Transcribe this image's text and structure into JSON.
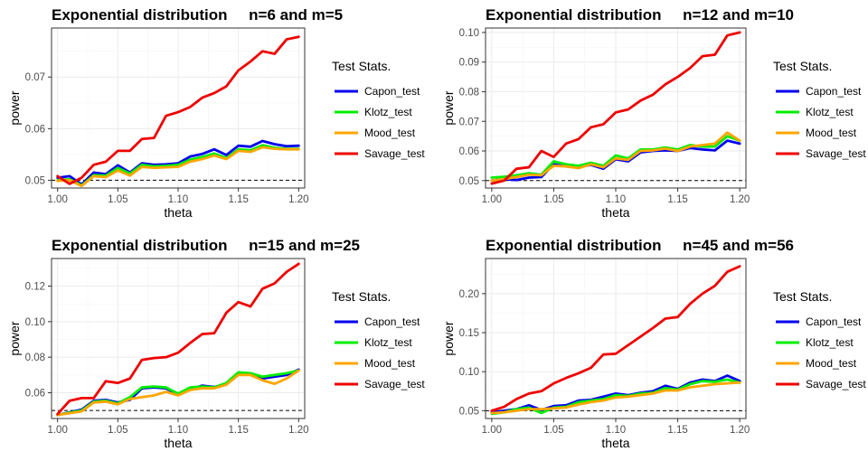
{
  "colors": {
    "Capon_test": "#0000ee",
    "Klotz_test": "#00ee00",
    "Mood_test": "#ffa500",
    "Savage_test": "#ee0000"
  },
  "chart_data": [
    {
      "type": "line",
      "title": "Exponential distribution     n=6 and m=5",
      "xlabel": "theta",
      "ylabel": "power",
      "xlim": [
        0.995,
        1.205
      ],
      "ylim": [
        0.0485,
        0.0795
      ],
      "xticks": [
        1.0,
        1.05,
        1.1,
        1.15,
        1.2
      ],
      "xtick_labels": [
        "1.00",
        "1.05",
        "1.10",
        "1.15",
        "1.20"
      ],
      "yticks": [
        0.05,
        0.06,
        0.07
      ],
      "ytick_labels": [
        "0.05",
        "0.06",
        "0.07"
      ],
      "reference_line": 0.05,
      "legend_title": "Test Stats.",
      "legend_position": "right",
      "grid": true,
      "x": [
        1.0,
        1.01,
        1.02,
        1.03,
        1.04,
        1.05,
        1.06,
        1.07,
        1.08,
        1.09,
        1.1,
        1.11,
        1.12,
        1.13,
        1.14,
        1.15,
        1.16,
        1.17,
        1.18,
        1.19,
        1.2
      ],
      "series": [
        {
          "name": "Capon_test",
          "values": [
            0.0505,
            0.0508,
            0.0492,
            0.0515,
            0.0512,
            0.0529,
            0.0515,
            0.0533,
            0.053,
            0.0531,
            0.0533,
            0.0546,
            0.0551,
            0.056,
            0.0549,
            0.0567,
            0.0565,
            0.0576,
            0.057,
            0.0566,
            0.0567
          ]
        },
        {
          "name": "Klotz_test",
          "values": [
            0.05,
            0.0502,
            0.049,
            0.051,
            0.0509,
            0.0524,
            0.0513,
            0.053,
            0.0527,
            0.0528,
            0.053,
            0.054,
            0.0545,
            0.0552,
            0.0543,
            0.056,
            0.0558,
            0.0568,
            0.0563,
            0.0561,
            0.0561
          ]
        },
        {
          "name": "Mood_test",
          "values": [
            0.0499,
            0.05,
            0.0489,
            0.0508,
            0.0506,
            0.0519,
            0.0509,
            0.0526,
            0.0524,
            0.0525,
            0.0526,
            0.0536,
            0.0541,
            0.0548,
            0.0541,
            0.0557,
            0.0555,
            0.0564,
            0.0561,
            0.056,
            0.056
          ]
        },
        {
          "name": "Savage_test",
          "values": [
            0.0508,
            0.0493,
            0.0505,
            0.053,
            0.0536,
            0.0557,
            0.0557,
            0.058,
            0.0582,
            0.0625,
            0.0632,
            0.0642,
            0.066,
            0.0669,
            0.0682,
            0.0713,
            0.073,
            0.075,
            0.0745,
            0.0773,
            0.0778
          ]
        }
      ]
    },
    {
      "type": "line",
      "title": "Exponential distribution     n=12 and m=10",
      "xlabel": "theta",
      "ylabel": "power",
      "xlim": [
        0.995,
        1.205
      ],
      "ylim": [
        0.0475,
        0.1015
      ],
      "xticks": [
        1.0,
        1.05,
        1.1,
        1.15,
        1.2
      ],
      "xtick_labels": [
        "1.00",
        "1.05",
        "1.10",
        "1.15",
        "1.20"
      ],
      "yticks": [
        0.05,
        0.06,
        0.07,
        0.08,
        0.09,
        0.1
      ],
      "ytick_labels": [
        "0.05",
        "0.06",
        "0.07",
        "0.08",
        "0.09",
        "0.10"
      ],
      "reference_line": 0.05,
      "legend_title": "Test Stats.",
      "legend_position": "right",
      "grid": true,
      "x": [
        1.0,
        1.01,
        1.02,
        1.03,
        1.04,
        1.05,
        1.06,
        1.07,
        1.08,
        1.09,
        1.1,
        1.11,
        1.12,
        1.13,
        1.14,
        1.15,
        1.16,
        1.17,
        1.18,
        1.19,
        1.2
      ],
      "series": [
        {
          "name": "Capon_test",
          "values": [
            0.05,
            0.0505,
            0.0502,
            0.051,
            0.0512,
            0.0555,
            0.0548,
            0.0545,
            0.0553,
            0.054,
            0.0572,
            0.0565,
            0.0595,
            0.06,
            0.0602,
            0.06,
            0.061,
            0.0605,
            0.0602,
            0.0635,
            0.0625
          ]
        },
        {
          "name": "Klotz_test",
          "values": [
            0.051,
            0.0513,
            0.0518,
            0.0525,
            0.052,
            0.0565,
            0.0555,
            0.055,
            0.056,
            0.055,
            0.0585,
            0.0575,
            0.0605,
            0.0605,
            0.0612,
            0.0605,
            0.062,
            0.0615,
            0.0615,
            0.065,
            0.0635
          ]
        },
        {
          "name": "Mood_test",
          "values": [
            0.05,
            0.0505,
            0.0512,
            0.052,
            0.0518,
            0.055,
            0.0548,
            0.0542,
            0.0555,
            0.0545,
            0.0575,
            0.057,
            0.06,
            0.0602,
            0.0608,
            0.06,
            0.0615,
            0.062,
            0.0625,
            0.0662,
            0.0635
          ]
        },
        {
          "name": "Savage_test",
          "values": [
            0.049,
            0.05,
            0.054,
            0.0545,
            0.06,
            0.058,
            0.0625,
            0.064,
            0.068,
            0.069,
            0.073,
            0.074,
            0.077,
            0.079,
            0.0825,
            0.085,
            0.088,
            0.092,
            0.0925,
            0.099,
            0.1
          ]
        }
      ]
    },
    {
      "type": "line",
      "title": "Exponential distribution     n=15 and m=25",
      "xlabel": "theta",
      "ylabel": "power",
      "xlim": [
        0.995,
        1.205
      ],
      "ylim": [
        0.0455,
        0.1355
      ],
      "xticks": [
        1.0,
        1.05,
        1.1,
        1.15,
        1.2
      ],
      "xtick_labels": [
        "1.00",
        "1.05",
        "1.10",
        "1.15",
        "1.20"
      ],
      "yticks": [
        0.06,
        0.08,
        0.1,
        0.12
      ],
      "ytick_labels": [
        "0.06",
        "0.08",
        "0.10",
        "0.12"
      ],
      "reference_line": 0.05,
      "legend_title": "Test Stats.",
      "legend_position": "right",
      "grid": true,
      "x": [
        1.0,
        1.01,
        1.02,
        1.03,
        1.04,
        1.05,
        1.06,
        1.07,
        1.08,
        1.09,
        1.1,
        1.11,
        1.12,
        1.13,
        1.14,
        1.15,
        1.16,
        1.17,
        1.18,
        1.19,
        1.2
      ],
      "series": [
        {
          "name": "Capon_test",
          "values": [
            0.0475,
            0.049,
            0.0505,
            0.0555,
            0.056,
            0.0545,
            0.056,
            0.0625,
            0.063,
            0.0625,
            0.059,
            0.062,
            0.064,
            0.0632,
            0.065,
            0.071,
            0.0705,
            0.068,
            0.069,
            0.07,
            0.073
          ]
        },
        {
          "name": "Klotz_test",
          "values": [
            0.0475,
            0.0488,
            0.05,
            0.055,
            0.0555,
            0.054,
            0.0575,
            0.063,
            0.0635,
            0.063,
            0.0595,
            0.063,
            0.0635,
            0.063,
            0.0655,
            0.0715,
            0.071,
            0.069,
            0.07,
            0.071,
            0.0725
          ]
        },
        {
          "name": "Mood_test",
          "values": [
            0.0475,
            0.0485,
            0.0495,
            0.0545,
            0.055,
            0.0535,
            0.0565,
            0.0575,
            0.0585,
            0.0605,
            0.0585,
            0.0615,
            0.0625,
            0.0625,
            0.0645,
            0.07,
            0.07,
            0.067,
            0.065,
            0.068,
            0.0725
          ]
        },
        {
          "name": "Savage_test",
          "values": [
            0.048,
            0.0555,
            0.057,
            0.057,
            0.0665,
            0.0655,
            0.068,
            0.0785,
            0.0795,
            0.08,
            0.0825,
            0.088,
            0.093,
            0.0935,
            0.105,
            0.111,
            0.1085,
            0.1185,
            0.1215,
            0.128,
            0.1325
          ]
        }
      ]
    },
    {
      "type": "line",
      "title": "Exponential distribution     n=45 and m=56",
      "xlabel": "theta",
      "ylabel": "power",
      "xlim": [
        0.995,
        1.205
      ],
      "ylim": [
        0.04,
        0.245
      ],
      "xticks": [
        1.0,
        1.05,
        1.1,
        1.15,
        1.2
      ],
      "xtick_labels": [
        "1.00",
        "1.05",
        "1.10",
        "1.15",
        "1.20"
      ],
      "yticks": [
        0.05,
        0.1,
        0.15,
        0.2
      ],
      "ytick_labels": [
        "0.05",
        "0.10",
        "0.15",
        "0.20"
      ],
      "reference_line": 0.05,
      "legend_title": "Test Stats.",
      "legend_position": "right",
      "grid": true,
      "x": [
        1.0,
        1.01,
        1.02,
        1.03,
        1.04,
        1.05,
        1.06,
        1.07,
        1.08,
        1.09,
        1.1,
        1.11,
        1.12,
        1.13,
        1.14,
        1.15,
        1.16,
        1.17,
        1.18,
        1.19,
        1.2
      ],
      "series": [
        {
          "name": "Capon_test",
          "values": [
            0.048,
            0.05,
            0.052,
            0.057,
            0.051,
            0.056,
            0.057,
            0.063,
            0.064,
            0.068,
            0.072,
            0.07,
            0.073,
            0.075,
            0.082,
            0.078,
            0.086,
            0.09,
            0.088,
            0.095,
            0.088
          ]
        },
        {
          "name": "Klotz_test",
          "values": [
            0.046,
            0.048,
            0.052,
            0.054,
            0.047,
            0.054,
            0.055,
            0.061,
            0.063,
            0.065,
            0.07,
            0.069,
            0.072,
            0.073,
            0.079,
            0.077,
            0.084,
            0.088,
            0.087,
            0.09,
            0.086
          ]
        },
        {
          "name": "Mood_test",
          "values": [
            0.047,
            0.048,
            0.05,
            0.052,
            0.052,
            0.053,
            0.054,
            0.058,
            0.061,
            0.063,
            0.067,
            0.068,
            0.07,
            0.072,
            0.076,
            0.076,
            0.08,
            0.082,
            0.084,
            0.085,
            0.086
          ]
        },
        {
          "name": "Savage_test",
          "values": [
            0.05,
            0.055,
            0.065,
            0.072,
            0.075,
            0.085,
            0.092,
            0.098,
            0.105,
            0.122,
            0.123,
            0.134,
            0.145,
            0.156,
            0.168,
            0.17,
            0.187,
            0.2,
            0.21,
            0.228,
            0.235
          ]
        }
      ]
    }
  ]
}
